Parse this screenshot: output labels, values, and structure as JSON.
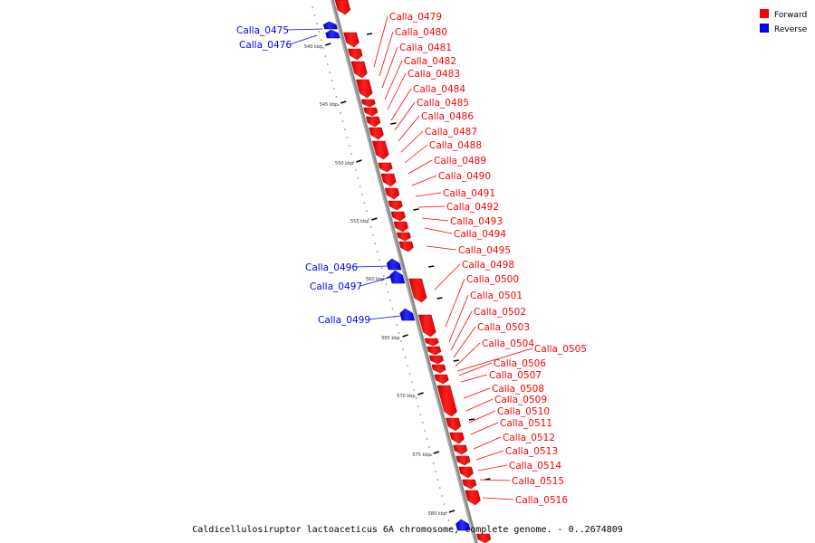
{
  "legend": {
    "forward_label": "Forward",
    "reverse_label": "Reverse",
    "forward_color": "#ff0000",
    "reverse_color": "#0000ff"
  },
  "caption": "Caldicellulosiruptor lactoaceticus 6A chromosome, complete genome. - 0..2674809",
  "scale": {
    "unit": "kbp",
    "ticks": [
      540,
      545,
      550,
      555,
      560,
      565,
      570,
      575,
      580
    ]
  },
  "genes": [
    {
      "name": "Calla_0475",
      "strand": "reverse"
    },
    {
      "name": "Calla_0476",
      "strand": "reverse"
    },
    {
      "name": "Calla_0479",
      "strand": "forward"
    },
    {
      "name": "Calla_0480",
      "strand": "forward"
    },
    {
      "name": "Calla_0481",
      "strand": "forward"
    },
    {
      "name": "Calla_0482",
      "strand": "forward"
    },
    {
      "name": "Calla_0483",
      "strand": "forward"
    },
    {
      "name": "Calla_0484",
      "strand": "forward"
    },
    {
      "name": "Calla_0485",
      "strand": "forward"
    },
    {
      "name": "Calla_0486",
      "strand": "forward"
    },
    {
      "name": "Calla_0487",
      "strand": "forward"
    },
    {
      "name": "Calla_0488",
      "strand": "forward"
    },
    {
      "name": "Calla_0489",
      "strand": "forward"
    },
    {
      "name": "Calla_0490",
      "strand": "forward"
    },
    {
      "name": "Calla_0491",
      "strand": "forward"
    },
    {
      "name": "Calla_0492",
      "strand": "forward"
    },
    {
      "name": "Calla_0493",
      "strand": "forward"
    },
    {
      "name": "Calla_0494",
      "strand": "forward"
    },
    {
      "name": "Calla_0495",
      "strand": "forward"
    },
    {
      "name": "Calla_0496",
      "strand": "reverse"
    },
    {
      "name": "Calla_0497",
      "strand": "reverse"
    },
    {
      "name": "Calla_0498",
      "strand": "forward"
    },
    {
      "name": "Calla_0499",
      "strand": "reverse"
    },
    {
      "name": "Calla_0500",
      "strand": "forward"
    },
    {
      "name": "Calla_0501",
      "strand": "forward"
    },
    {
      "name": "Calla_0502",
      "strand": "forward"
    },
    {
      "name": "Calla_0503",
      "strand": "forward"
    },
    {
      "name": "Calla_0504",
      "strand": "forward"
    },
    {
      "name": "Calla_0505",
      "strand": "forward"
    },
    {
      "name": "Calla_0506",
      "strand": "forward"
    },
    {
      "name": "Calla_0507",
      "strand": "forward"
    },
    {
      "name": "Calla_0508",
      "strand": "forward"
    },
    {
      "name": "Calla_0509",
      "strand": "forward"
    },
    {
      "name": "Calla_0510",
      "strand": "forward"
    },
    {
      "name": "Calla_0511",
      "strand": "forward"
    },
    {
      "name": "Calla_0512",
      "strand": "forward"
    },
    {
      "name": "Calla_0513",
      "strand": "forward"
    },
    {
      "name": "Calla_0514",
      "strand": "forward"
    },
    {
      "name": "Calla_0515",
      "strand": "forward"
    },
    {
      "name": "Calla_0516",
      "strand": "forward"
    }
  ]
}
